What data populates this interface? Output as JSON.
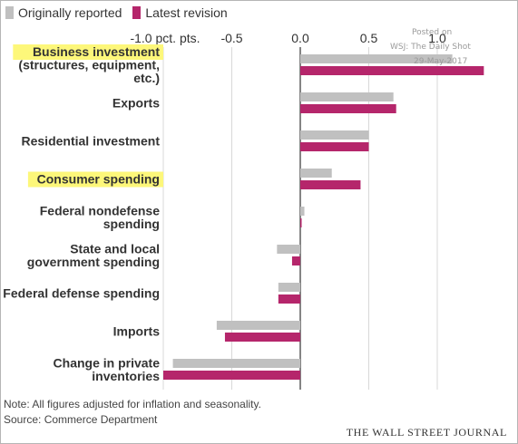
{
  "legend": [
    {
      "label": "Originally reported",
      "color": "#c0c0c0"
    },
    {
      "label": "Latest revision",
      "color": "#b5266b"
    }
  ],
  "watermark": {
    "line1": "Posted on",
    "line2": "WSJ: The Daily Shot",
    "line3": "29-May-2017"
  },
  "note": "Note: All figures adjusted for inflation and seasonality.",
  "source": "Source: Commerce Department",
  "publisher": "THE WALL STREET JOURNAL",
  "highlight_color": "#fdf77a",
  "chart_data": {
    "type": "bar",
    "orientation": "horizontal",
    "xlim": [
      -1.0,
      1.35
    ],
    "ticks": [
      {
        "value": -1.0,
        "label": "-1.0 pct. pts."
      },
      {
        "value": -0.5,
        "label": "-0.5"
      },
      {
        "value": 0.0,
        "label": "0.0"
      },
      {
        "value": 0.5,
        "label": "0.5"
      },
      {
        "value": 1.0,
        "label": "1.0"
      }
    ],
    "grid": true,
    "legend_position": "top-left",
    "categories": [
      {
        "label": "Business investment\n(structures, equipment,\netc.)",
        "highlight": true
      },
      {
        "label": "Exports",
        "highlight": false
      },
      {
        "label": "Residential investment",
        "highlight": false
      },
      {
        "label": "Consumer spending",
        "highlight": true
      },
      {
        "label": "Federal nondefense\nspending",
        "highlight": false
      },
      {
        "label": "State and local\ngovernment spending",
        "highlight": false
      },
      {
        "label": "Federal defense spending",
        "highlight": false
      },
      {
        "label": "Imports",
        "highlight": false
      },
      {
        "label": "Change in private\ninventories",
        "highlight": false
      }
    ],
    "series": [
      {
        "name": "Originally reported",
        "color": "#c0c0c0",
        "values": [
          1.11,
          0.68,
          0.5,
          0.23,
          0.03,
          -0.17,
          -0.16,
          -0.61,
          -0.93
        ]
      },
      {
        "name": "Latest revision",
        "color": "#b5266b",
        "values": [
          1.34,
          0.7,
          0.5,
          0.44,
          0.01,
          -0.06,
          -0.16,
          -0.55,
          -1.0
        ]
      }
    ]
  }
}
